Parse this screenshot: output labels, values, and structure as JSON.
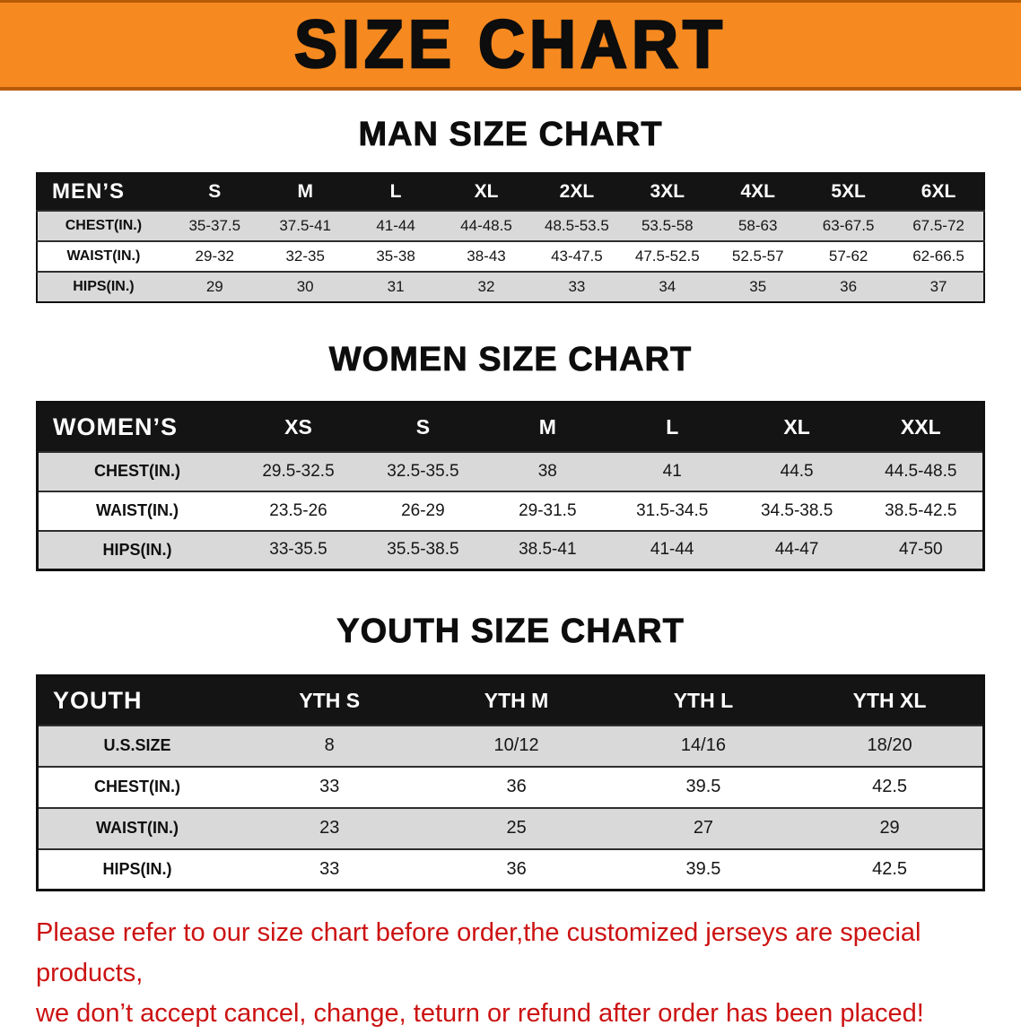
{
  "banner": {
    "title": "SIZE CHART"
  },
  "colors": {
    "banner_orange": "#f6891f",
    "banner_edge": "#b75b07",
    "header_bg": "#141414",
    "row_shade": "#d9d9d9",
    "footer_red": "#cc1212"
  },
  "sections": [
    {
      "heading": "MAN SIZE CHART",
      "table": {
        "header": [
          "MEN’S",
          "S",
          "M",
          "L",
          "XL",
          "2XL",
          "3XL",
          "4XL",
          "5XL",
          "6XL"
        ],
        "rows": [
          {
            "label": "CHEST(IN.)",
            "values": [
              "35-37.5",
              "37.5-41",
              "41-44",
              "44-48.5",
              "48.5-53.5",
              "53.5-58",
              "58-63",
              "63-67.5",
              "67.5-72"
            ]
          },
          {
            "label": "WAIST(IN.)",
            "values": [
              "29-32",
              "32-35",
              "35-38",
              "38-43",
              "43-47.5",
              "47.5-52.5",
              "52.5-57",
              "57-62",
              "62-66.5"
            ]
          },
          {
            "label": "HIPS(IN.)",
            "values": [
              "29",
              "30",
              "31",
              "32",
              "33",
              "34",
              "35",
              "36",
              "37"
            ]
          }
        ]
      }
    },
    {
      "heading": "WOMEN SIZE CHART",
      "table": {
        "header": [
          "WOMEN’S",
          "XS",
          "S",
          "M",
          "L",
          "XL",
          "XXL"
        ],
        "rows": [
          {
            "label": "CHEST(IN.)",
            "values": [
              "29.5-32.5",
              "32.5-35.5",
              "38",
              "41",
              "44.5",
              "44.5-48.5"
            ]
          },
          {
            "label": "WAIST(IN.)",
            "values": [
              "23.5-26",
              "26-29",
              "29-31.5",
              "31.5-34.5",
              "34.5-38.5",
              "38.5-42.5"
            ]
          },
          {
            "label": "HIPS(IN.)",
            "values": [
              "33-35.5",
              "35.5-38.5",
              "38.5-41",
              "41-44",
              "44-47",
              "47-50"
            ]
          }
        ]
      }
    },
    {
      "heading": "YOUTH SIZE CHART",
      "table": {
        "header": [
          "YOUTH",
          "YTH S",
          "YTH M",
          "YTH L",
          "YTH XL"
        ],
        "rows": [
          {
            "label": "U.S.SIZE",
            "values": [
              "8",
              "10/12",
              "14/16",
              "18/20"
            ]
          },
          {
            "label": "CHEST(IN.)",
            "values": [
              "33",
              "36",
              "39.5",
              "42.5"
            ]
          },
          {
            "label": "WAIST(IN.)",
            "values": [
              "23",
              "25",
              "27",
              "29"
            ]
          },
          {
            "label": "HIPS(IN.)",
            "values": [
              "33",
              "36",
              "39.5",
              "42.5"
            ]
          }
        ]
      }
    }
  ],
  "footer": {
    "lines": [
      "Please refer to our size chart before order,the customized jerseys are special products,",
      "we don’t accept cancel, change, teturn or refund after order has been placed!"
    ]
  }
}
